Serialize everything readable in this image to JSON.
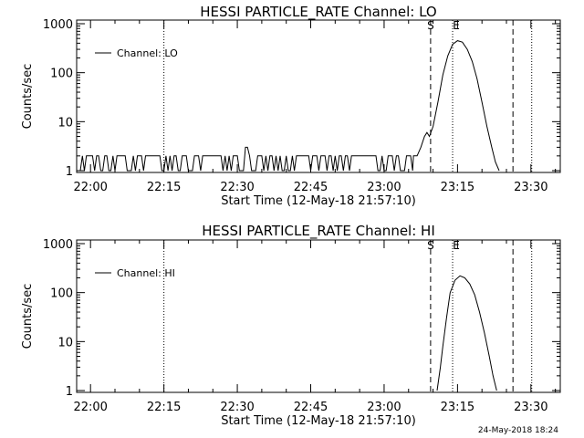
{
  "chart_data": [
    {
      "type": "line",
      "title": "HESSI PARTICLE_RATE Channel: LO",
      "xlabel": "Start Time (12-May-18 21:57:10)",
      "ylabel": "Counts/sec",
      "yscale": "log",
      "ylim": [
        1,
        1000
      ],
      "xlim": [
        "21:57:10",
        "23:36:00"
      ],
      "xticks": [
        "22:00",
        "22:15",
        "22:30",
        "22:45",
        "23:00",
        "23:15",
        "23:30"
      ],
      "yticks": [
        "1",
        "10",
        "100",
        "1000"
      ],
      "legend": {
        "label": "Channel: LO",
        "position": "top-left"
      },
      "markers": [
        {
          "label": "S",
          "time": "23:09:30",
          "style": "dashed"
        },
        {
          "label": "E",
          "time": "23:14:00",
          "style": "dotted"
        }
      ],
      "vlines": [
        {
          "time": "22:15:00",
          "style": "dotted"
        },
        {
          "time": "23:26:20",
          "style": "dashed"
        },
        {
          "time": "23:30:10",
          "style": "dotted"
        }
      ],
      "series": [
        {
          "name": "Channel: LO",
          "noise": {
            "start": "21:57:30",
            "end": "23:06:00",
            "low": 1,
            "high": 2,
            "spike": {
              "time": "22:32:00",
              "value": 3
            }
          },
          "x": [
            "23:06:00",
            "23:06:45",
            "23:07:30",
            "23:08:15",
            "23:08:45",
            "23:09:15",
            "23:10:00",
            "23:11:00",
            "23:12:00",
            "23:13:00",
            "23:14:00",
            "23:15:00",
            "23:16:00",
            "23:17:00",
            "23:18:00",
            "23:19:00",
            "23:20:00",
            "23:21:00",
            "23:22:00",
            "23:22:45",
            "23:23:30"
          ],
          "y": [
            2,
            2,
            3,
            5,
            6,
            5,
            8,
            25,
            90,
            220,
            380,
            450,
            420,
            300,
            170,
            75,
            25,
            8,
            3,
            1.5,
            1
          ]
        }
      ]
    },
    {
      "type": "line",
      "title": "HESSI PARTICLE_RATE Channel: HI",
      "xlabel": "Start Time (12-May-18 21:57:10)",
      "ylabel": "Counts/sec",
      "yscale": "log",
      "ylim": [
        1,
        1000
      ],
      "xlim": [
        "21:57:10",
        "23:36:00"
      ],
      "xticks": [
        "22:00",
        "22:15",
        "22:30",
        "22:45",
        "23:00",
        "23:15",
        "23:30"
      ],
      "yticks": [
        "1",
        "10",
        "100",
        "1000"
      ],
      "legend": {
        "label": "Channel: HI",
        "position": "top-left"
      },
      "markers": [
        {
          "label": "S",
          "time": "23:09:30",
          "style": "dashed"
        },
        {
          "label": "E",
          "time": "23:14:00",
          "style": "dotted"
        }
      ],
      "vlines": [
        {
          "time": "22:15:00",
          "style": "dotted"
        },
        {
          "time": "23:26:20",
          "style": "dashed"
        },
        {
          "time": "23:30:10",
          "style": "dotted"
        }
      ],
      "series": [
        {
          "name": "Channel: HI",
          "x": [
            "23:10:50",
            "23:11:30",
            "23:12:00",
            "23:12:45",
            "23:13:30",
            "23:14:30",
            "23:15:30",
            "23:16:30",
            "23:17:30",
            "23:18:30",
            "23:19:30",
            "23:20:30",
            "23:21:30",
            "23:22:15",
            "23:23:00"
          ],
          "y": [
            1,
            3,
            8,
            30,
            100,
            180,
            220,
            200,
            150,
            90,
            40,
            15,
            5,
            2,
            1
          ]
        }
      ]
    }
  ],
  "footer": {
    "timestamp": "24-May-2018 18:24"
  }
}
